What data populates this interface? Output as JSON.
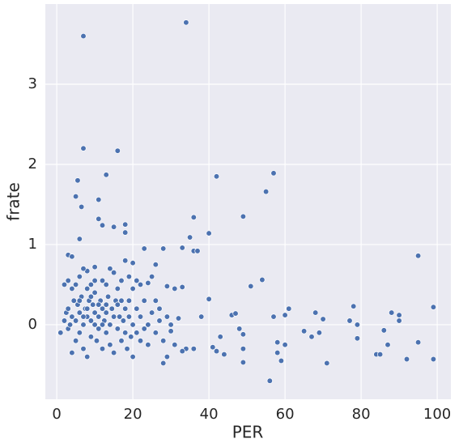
{
  "chart_data": {
    "type": "scatter",
    "xlabel": "PER",
    "ylabel": "frate",
    "color": "#4c72b0",
    "grid": true,
    "xlim": [
      -3,
      103.6
    ],
    "ylim": [
      -0.93,
      4.0
    ],
    "xticks": [
      0,
      20,
      40,
      60,
      80,
      100
    ],
    "yticks": [
      0,
      1,
      2,
      3
    ],
    "x": [
      7,
      34,
      7,
      16,
      13,
      42,
      57,
      5.5,
      55,
      5,
      11,
      6.5,
      36,
      49,
      11,
      18,
      12,
      15,
      40,
      35,
      6,
      18,
      95,
      3,
      4,
      28,
      23,
      33,
      36,
      37,
      26,
      20,
      10,
      8,
      54,
      51,
      57,
      58,
      56,
      60,
      61,
      60,
      58,
      59,
      65,
      67,
      68,
      70,
      69,
      71,
      77,
      78,
      79,
      79,
      84,
      85,
      86,
      88,
      87,
      90,
      90,
      92,
      95,
      99,
      99,
      48,
      49,
      49,
      49,
      46,
      47,
      44,
      42,
      41,
      43,
      40,
      38,
      36,
      34,
      33,
      31,
      30,
      29,
      28,
      32,
      31,
      33,
      29,
      25,
      24,
      26,
      27,
      22,
      21,
      20,
      19,
      18,
      17,
      16,
      15,
      14,
      13,
      12,
      10,
      9,
      8,
      7,
      6,
      5,
      4,
      3,
      2,
      1,
      2,
      2.5,
      3,
      3,
      3.5,
      4,
      4,
      4.5,
      5,
      5,
      5.5,
      6,
      6,
      6.5,
      7,
      7,
      7.5,
      8,
      8,
      8.5,
      9,
      9,
      9.5,
      10,
      10,
      10.5,
      11,
      11,
      11.5,
      12,
      12,
      12.5,
      13,
      13,
      13.5,
      14,
      14,
      14.5,
      15,
      15,
      15.5,
      16,
      16,
      16.5,
      17,
      17,
      17.5,
      18,
      18,
      18.5,
      19,
      19,
      19.5,
      20,
      20,
      21,
      21,
      22,
      22,
      23,
      23,
      24,
      24,
      25,
      26,
      27,
      28,
      29,
      30,
      6,
      8,
      9,
      10,
      11,
      12,
      13,
      7
    ],
    "y": [
      3.6,
      3.77,
      2.2,
      2.17,
      1.87,
      1.85,
      1.89,
      1.8,
      1.66,
      1.6,
      1.56,
      1.47,
      1.34,
      1.35,
      1.32,
      1.25,
      1.24,
      1.22,
      1.14,
      1.09,
      1.07,
      1.15,
      0.86,
      0.87,
      0.85,
      0.95,
      0.95,
      0.96,
      0.92,
      0.92,
      0.75,
      0.77,
      0.72,
      0.67,
      0.56,
      0.48,
      0.1,
      -0.22,
      -0.7,
      0.12,
      0.2,
      -0.25,
      -0.35,
      -0.45,
      -0.08,
      -0.15,
      0.15,
      0.07,
      -0.1,
      -0.48,
      0.05,
      0.23,
      0,
      -0.17,
      -0.37,
      -0.37,
      -0.07,
      0.15,
      -0.25,
      0.12,
      0.05,
      -0.43,
      -0.22,
      0.22,
      -0.43,
      -0.05,
      -0.12,
      -0.3,
      -0.47,
      0.12,
      0.14,
      -0.37,
      -0.33,
      -0.28,
      -0.15,
      0.32,
      0.1,
      -0.3,
      -0.3,
      -0.33,
      -0.25,
      -0.08,
      -0.4,
      -0.48,
      0.08,
      0.45,
      0.47,
      0.48,
      0.6,
      0.52,
      0.3,
      0.2,
      0.5,
      0.55,
      0.45,
      0.6,
      0.8,
      0.55,
      0.45,
      0.65,
      0.7,
      0.5,
      0.55,
      0.55,
      0.5,
      0.45,
      0.7,
      0.6,
      0.5,
      0.45,
      0.55,
      0.5,
      -0.1,
      0.05,
      0.15,
      -0.05,
      0.2,
      0,
      -0.35,
      0.1,
      0.3,
      -0.2,
      0.05,
      0.25,
      -0.1,
      0.15,
      0.35,
      0,
      -0.3,
      0.2,
      0.1,
      -0.4,
      0.3,
      0.05,
      -0.15,
      0.25,
      0,
      0.4,
      -0.2,
      0.1,
      -0.05,
      0.3,
      0.2,
      -0.3,
      0.05,
      0.15,
      -0.1,
      0.35,
      0,
      -0.25,
      0.2,
      0.1,
      -0.35,
      0.3,
      -0.05,
      0.25,
      0.1,
      -0.2,
      0.3,
      0.05,
      0.2,
      -0.1,
      -0.3,
      0.1,
      0.3,
      -0.15,
      0,
      -0.4,
      0.2,
      -0.1,
      0.1,
      -0.2,
      0.3,
      -0.05,
      0,
      -0.25,
      0.15,
      -0.1,
      0.05,
      -0.2,
      0.1,
      0,
      0.3,
      0.2,
      0.35,
      0.15,
      0.25,
      0,
      0.25,
      0.1
    ]
  }
}
